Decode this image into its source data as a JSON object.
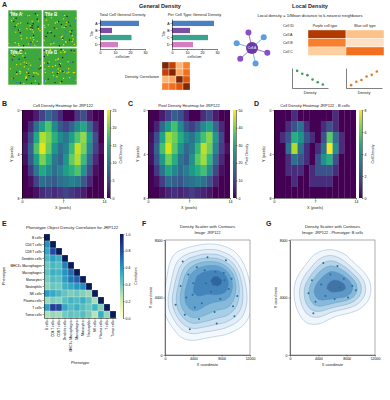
{
  "panel_labels": [
    "A",
    "B",
    "C",
    "D",
    "E",
    "F",
    "G"
  ],
  "schematic": {
    "tiles": [
      "Tile A",
      "Tile B",
      "Tile C",
      "Tile D"
    ],
    "general_title": "General Density",
    "local_title": "Local Density",
    "local_formula": "Local density = 1/Mean distance to k-nearest neighbours",
    "table_header": [
      "Cell ID",
      "Purple cell type",
      "Blue cell type"
    ],
    "table_rows": [
      "Cell A",
      "Cell B",
      "Cell C"
    ],
    "table_values": [
      [
        0.85,
        0.3
      ],
      [
        0.55,
        0.15
      ],
      [
        0.25,
        0.6
      ]
    ]
  },
  "chart_data": [
    {
      "type": "bar",
      "title": "Total Cell General Density",
      "orientation": "horizontal",
      "categories": [
        "A",
        "B",
        "C",
        "D"
      ],
      "values": [
        26,
        8,
        21,
        12
      ],
      "colors": [
        "#4a7fc1",
        "#7b4ea3",
        "#3aa38f",
        "#d47fbf"
      ],
      "xlim": [
        0,
        30
      ],
      "xticks": [
        0,
        10,
        20,
        30
      ],
      "x_label": "cells/um",
      "y_label": "Tile"
    },
    {
      "type": "bar",
      "title": "Per Cell Type General Density",
      "orientation": "horizontal",
      "categories": [
        "A",
        "B",
        "C",
        "D"
      ],
      "values": [
        28,
        12,
        24,
        14
      ],
      "colors": [
        "#4a7fc1",
        "#7b4ea3",
        "#3aa38f",
        "#d47fbf"
      ],
      "xlim": [
        0,
        30
      ],
      "xticks": [
        0,
        10,
        20,
        30
      ],
      "x_label": "cells/um",
      "y_label": "Tile"
    },
    {
      "type": "heatmap",
      "title": "Density Correlation",
      "tick_labels": false,
      "cells": [
        [
          1,
          0.8,
          0.35,
          0.55
        ],
        [
          0.8,
          1,
          0.4,
          0.6
        ],
        [
          0.35,
          0.4,
          1,
          0.7
        ],
        [
          0.55,
          0.6,
          0.7,
          1
        ]
      ],
      "zlim": [
        0,
        1
      ]
    },
    {
      "type": "scatter",
      "x": [
        1,
        2,
        3,
        4,
        5,
        6
      ],
      "values": [
        6,
        5,
        4.5,
        3,
        2,
        1.2
      ],
      "xlim": [
        0,
        7
      ],
      "ylim": [
        0,
        7
      ],
      "tick_labels": false,
      "x_label": "Density",
      "color": "#3a9d5d",
      "marker": "circle"
    },
    {
      "type": "scatter",
      "x": [
        1,
        2,
        3,
        4,
        5,
        6
      ],
      "values": [
        1,
        2.2,
        2.8,
        4,
        4.6,
        5.8
      ],
      "xlim": [
        0,
        7
      ],
      "ylim": [
        0,
        7
      ],
      "tick_labels": false,
      "x_label": "Density",
      "color": "#e07b28",
      "marker": "circle"
    },
    {
      "type": "heatmap",
      "title": "Cell Density Heatmap for JRP122",
      "x_label": "X (pixels)",
      "y_label": "Y (pixels)",
      "colorbar_label": "Cell Density",
      "xlim": [
        0,
        14
      ],
      "xticks": [
        0,
        7,
        14
      ],
      "ylim": [
        0,
        8
      ],
      "yticks": [
        0,
        4,
        8
      ],
      "zlim": [
        0,
        25
      ],
      "zticks": [
        0,
        5,
        10,
        15,
        20,
        25
      ],
      "cells": [
        [
          0,
          0,
          2,
          5,
          8,
          6,
          3,
          0,
          0,
          4,
          6,
          2,
          0,
          0
        ],
        [
          0,
          3,
          9,
          14,
          18,
          12,
          7,
          5,
          8,
          12,
          15,
          9,
          3,
          0
        ],
        [
          1,
          6,
          15,
          22,
          20,
          16,
          12,
          10,
          14,
          18,
          21,
          14,
          6,
          0
        ],
        [
          2,
          8,
          18,
          24,
          19,
          13,
          9,
          11,
          17,
          23,
          20,
          12,
          5,
          1
        ],
        [
          1,
          7,
          14,
          20,
          16,
          10,
          8,
          13,
          19,
          22,
          17,
          9,
          3,
          0
        ],
        [
          0,
          4,
          10,
          15,
          12,
          9,
          11,
          14,
          16,
          18,
          13,
          6,
          1,
          0
        ],
        [
          0,
          1,
          5,
          9,
          8,
          7,
          9,
          10,
          11,
          10,
          7,
          3,
          0,
          0
        ],
        [
          0,
          0,
          1,
          3,
          4,
          3,
          4,
          5,
          4,
          3,
          2,
          0,
          0,
          0
        ]
      ]
    },
    {
      "type": "heatmap",
      "title": "Pixel Density Heatmap for JRP122",
      "x_label": "X (pixels)",
      "y_label": "Y (pixels)",
      "colorbar_label": "Pixel Density",
      "xlim": [
        0,
        14
      ],
      "xticks": [
        0,
        7,
        14
      ],
      "ylim": [
        0,
        8
      ],
      "yticks": [
        0,
        4,
        8
      ],
      "zlim": [
        0,
        50
      ],
      "zticks": [
        0,
        10,
        20,
        30,
        40,
        50
      ],
      "cells": [
        [
          0,
          0,
          4,
          9,
          15,
          12,
          5,
          0,
          0,
          7,
          11,
          4,
          0,
          0
        ],
        [
          0,
          5,
          17,
          27,
          35,
          24,
          13,
          9,
          15,
          24,
          29,
          17,
          6,
          0
        ],
        [
          2,
          12,
          29,
          43,
          39,
          31,
          23,
          19,
          27,
          35,
          41,
          27,
          11,
          0
        ],
        [
          3,
          16,
          35,
          47,
          37,
          25,
          17,
          21,
          33,
          45,
          39,
          23,
          9,
          2
        ],
        [
          2,
          13,
          27,
          39,
          31,
          19,
          15,
          25,
          37,
          43,
          33,
          17,
          6,
          0
        ],
        [
          0,
          8,
          19,
          29,
          23,
          17,
          21,
          27,
          31,
          35,
          25,
          11,
          2,
          0
        ],
        [
          0,
          2,
          9,
          17,
          15,
          13,
          17,
          19,
          21,
          19,
          13,
          5,
          0,
          0
        ],
        [
          0,
          0,
          2,
          5,
          7,
          5,
          7,
          9,
          7,
          5,
          3,
          0,
          0,
          0
        ]
      ]
    },
    {
      "type": "heatmap",
      "title": "Cell Density Heatmap JRP122 - B cells",
      "x_label": "X (pixels)",
      "y_label": "Y (pixels)",
      "colorbar_label": "Cell Density",
      "xlim": [
        0,
        14
      ],
      "xticks": [
        0,
        7,
        14
      ],
      "ylim": [
        0,
        8
      ],
      "yticks": [
        0,
        4,
        8
      ],
      "zlim": [
        0,
        8
      ],
      "zticks": [
        0,
        2,
        4,
        6,
        8
      ],
      "cells": [
        [
          0,
          0,
          0,
          1,
          0,
          0,
          0,
          0,
          0,
          0,
          1,
          0,
          0,
          0
        ],
        [
          0,
          0,
          1,
          2,
          3,
          1,
          0,
          0,
          1,
          2,
          1,
          0,
          0,
          0
        ],
        [
          0,
          1,
          2,
          5,
          4,
          2,
          1,
          0,
          2,
          6,
          3,
          1,
          0,
          0
        ],
        [
          0,
          0,
          3,
          7,
          3,
          1,
          0,
          1,
          3,
          8,
          4,
          1,
          0,
          0
        ],
        [
          0,
          0,
          1,
          3,
          2,
          1,
          0,
          2,
          4,
          5,
          2,
          0,
          0,
          0
        ],
        [
          0,
          0,
          1,
          1,
          1,
          0,
          1,
          2,
          2,
          2,
          1,
          0,
          0,
          0
        ],
        [
          0,
          0,
          0,
          1,
          0,
          0,
          1,
          1,
          1,
          1,
          0,
          0,
          0,
          0
        ],
        [
          0,
          0,
          0,
          0,
          0,
          0,
          0,
          0,
          0,
          0,
          0,
          0,
          0,
          0
        ]
      ]
    },
    {
      "type": "heatmap",
      "title": "Phenotype Object Density Correlation for JRP122",
      "x_label": "Phenotype",
      "y_label": "Phenotype",
      "colorbar_label": "Correlation",
      "categories": [
        "B cells",
        "CD4 T cells",
        "CD8 T cells",
        "Dendritic cells",
        "MHCII+ Macrophages",
        "Macrophages",
        "Monocytes",
        "Neutrophils",
        "NK cells",
        "Plasma cells",
        "T cells",
        "Tumor cells"
      ],
      "zlim": [
        0,
        1
      ],
      "zticks": [
        {
          "value": 0,
          "label": "0.0"
        },
        {
          "value": 0.2,
          "label": "0.2"
        },
        {
          "value": 0.4,
          "label": "0.4"
        },
        {
          "value": 0.6,
          "label": "0.6"
        },
        {
          "value": 0.8,
          "label": "0.8"
        },
        {
          "value": 1,
          "label": "1.0"
        }
      ],
      "cells": [
        [
          1.0
        ],
        [
          0.62,
          1.0
        ],
        [
          0.55,
          0.81,
          1.0
        ],
        [
          0.48,
          0.57,
          0.52,
          1.0
        ],
        [
          0.41,
          0.49,
          0.46,
          0.66,
          1.0
        ],
        [
          0.44,
          0.52,
          0.5,
          0.61,
          0.72,
          1.0
        ],
        [
          0.39,
          0.47,
          0.45,
          0.58,
          0.69,
          0.74,
          1.0
        ],
        [
          0.35,
          0.42,
          0.4,
          0.51,
          0.55,
          0.6,
          0.63,
          1.0
        ],
        [
          0.58,
          0.54,
          0.49,
          0.43,
          0.38,
          0.41,
          0.37,
          0.33,
          1.0
        ],
        [
          0.32,
          0.38,
          0.36,
          0.45,
          0.5,
          0.47,
          0.52,
          0.44,
          0.3,
          1.0
        ],
        [
          0.57,
          0.85,
          0.83,
          0.55,
          0.47,
          0.51,
          0.46,
          0.41,
          0.5,
          0.37,
          1.0
        ],
        [
          0.29,
          0.33,
          0.31,
          0.4,
          0.44,
          0.42,
          0.46,
          0.39,
          0.27,
          0.53,
          0.34,
          1.0
        ]
      ]
    },
    {
      "type": "scatter",
      "title": "Density Scatter with Contours",
      "subtitle": "Image: JRP122",
      "x_label": "X coordinate",
      "y_label": "Y coordinate",
      "color": "#2a6f97",
      "marker": "circle",
      "xlim": [
        0,
        12000
      ],
      "xticks": [
        0,
        4000,
        8000,
        12000
      ],
      "ylim": [
        0,
        8000
      ],
      "yticks": [
        0,
        4000,
        8000
      ],
      "x": [
        1500,
        2200,
        2800,
        3300,
        3900,
        4500,
        5200,
        5800,
        6500,
        7100,
        7800,
        8400,
        9000,
        9600,
        10200,
        2500,
        3500,
        4800,
        6000,
        7300,
        8600,
        9800,
        3000,
        4200,
        5600,
        7000,
        8300,
        9400,
        4000,
        6800
      ],
      "values": [
        3500,
        4800,
        2800,
        5600,
        4200,
        6100,
        3600,
        5000,
        4400,
        5800,
        3900,
        5200,
        4600,
        3400,
        4100,
        6500,
        1800,
        2500,
        6800,
        2200,
        6600,
        2700,
        4000,
        3300,
        5900,
        3000,
        5700,
        5300,
        5000,
        4900
      ]
    },
    {
      "type": "scatter",
      "title": "Density Scatter with Contours",
      "subtitle": "Image: JRP122 - Phenotype: B cells",
      "x_label": "X coordinate",
      "y_label": "Y coordinate",
      "color": "#2a6f97",
      "marker": "circle",
      "xlim": [
        0,
        12000
      ],
      "xticks": [
        0,
        4000,
        8000,
        12000
      ],
      "ylim": [
        0,
        8000
      ],
      "yticks": [
        0,
        4000,
        8000
      ],
      "x": [
        2600,
        3100,
        3600,
        4400,
        5000,
        5700,
        6300,
        7000,
        7600,
        8200,
        8800,
        3300,
        6700,
        9300,
        4700
      ],
      "values": [
        4300,
        5200,
        3700,
        4900,
        4100,
        5600,
        3900,
        4700,
        5300,
        4000,
        4800,
        2900,
        6200,
        4500,
        6400
      ]
    }
  ]
}
